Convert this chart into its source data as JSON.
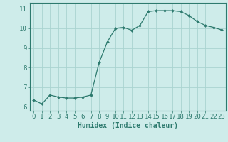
{
  "x": [
    0,
    1,
    2,
    3,
    4,
    5,
    6,
    7,
    8,
    9,
    10,
    11,
    12,
    13,
    14,
    15,
    16,
    17,
    18,
    19,
    20,
    21,
    22,
    23
  ],
  "y": [
    6.35,
    6.15,
    6.6,
    6.5,
    6.45,
    6.45,
    6.5,
    6.6,
    8.25,
    9.3,
    10.0,
    10.05,
    9.9,
    10.15,
    10.85,
    10.9,
    10.9,
    10.9,
    10.85,
    10.65,
    10.35,
    10.15,
    10.05,
    9.92
  ],
  "line_color": "#2d7a6e",
  "marker": "D",
  "marker_size": 2.0,
  "bg_color": "#ceecea",
  "grid_color": "#aad4d0",
  "xlabel": "Humidex (Indice chaleur)",
  "xlim": [
    -0.5,
    23.5
  ],
  "ylim": [
    5.8,
    11.3
  ],
  "yticks": [
    6,
    7,
    8,
    9,
    10,
    11
  ],
  "xticks": [
    0,
    1,
    2,
    3,
    4,
    5,
    6,
    7,
    8,
    9,
    10,
    11,
    12,
    13,
    14,
    15,
    16,
    17,
    18,
    19,
    20,
    21,
    22,
    23
  ],
  "tick_color": "#2d7a6e",
  "label_fontsize": 6.5,
  "axis_fontsize": 7.0,
  "linewidth": 0.9
}
